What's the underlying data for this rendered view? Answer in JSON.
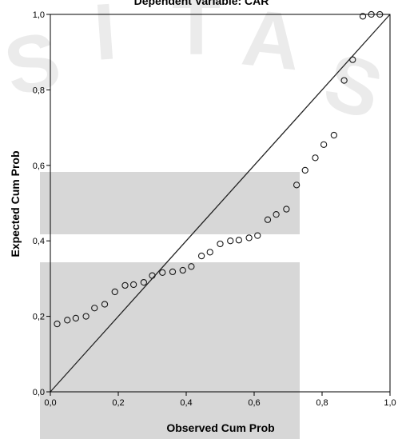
{
  "colors": {
    "background": "#ffffff",
    "watermark_band": "#d3d3d3",
    "watermark_text": "#ebebeb",
    "points": "#1a1a1a",
    "reference_line": "#222222",
    "axis": "#000000"
  },
  "watermark": {
    "letters": [
      "S",
      "I",
      "T",
      "A",
      "S"
    ]
  },
  "chart_data": {
    "type": "scatter",
    "title": "Dependent Variable: CAR",
    "xlabel": "Observed Cum Prob",
    "ylabel": "Expected Cum Prob",
    "xlim": [
      0,
      1
    ],
    "ylim": [
      0,
      1
    ],
    "x_ticks": [
      0,
      0.2,
      0.4,
      0.6,
      0.8,
      1
    ],
    "y_ticks": [
      0,
      0.2,
      0.4,
      0.6,
      0.8,
      1
    ],
    "x_tick_labels": [
      "0,0",
      "0,2",
      "0,4",
      "0,6",
      "0,8",
      "1,0"
    ],
    "y_tick_labels": [
      "0,0",
      "0,2",
      "0,4",
      "0,6",
      "0,8",
      "1,0"
    ],
    "grid": false,
    "reference_line": {
      "from": [
        0,
        0
      ],
      "to": [
        1,
        1
      ]
    },
    "points": [
      [
        0.02,
        0.18
      ],
      [
        0.05,
        0.19
      ],
      [
        0.075,
        0.195
      ],
      [
        0.105,
        0.2
      ],
      [
        0.13,
        0.222
      ],
      [
        0.16,
        0.232
      ],
      [
        0.19,
        0.265
      ],
      [
        0.22,
        0.282
      ],
      [
        0.245,
        0.284
      ],
      [
        0.275,
        0.29
      ],
      [
        0.3,
        0.308
      ],
      [
        0.33,
        0.316
      ],
      [
        0.36,
        0.318
      ],
      [
        0.39,
        0.322
      ],
      [
        0.415,
        0.332
      ],
      [
        0.445,
        0.36
      ],
      [
        0.47,
        0.37
      ],
      [
        0.5,
        0.392
      ],
      [
        0.53,
        0.4
      ],
      [
        0.555,
        0.402
      ],
      [
        0.585,
        0.408
      ],
      [
        0.61,
        0.414
      ],
      [
        0.64,
        0.456
      ],
      [
        0.665,
        0.47
      ],
      [
        0.695,
        0.484
      ],
      [
        0.725,
        0.548
      ],
      [
        0.75,
        0.587
      ],
      [
        0.78,
        0.62
      ],
      [
        0.805,
        0.655
      ],
      [
        0.835,
        0.68
      ],
      [
        0.865,
        0.825
      ],
      [
        0.89,
        0.88
      ],
      [
        0.92,
        0.995
      ],
      [
        0.945,
        1.0
      ],
      [
        0.97,
        1.0
      ]
    ]
  }
}
